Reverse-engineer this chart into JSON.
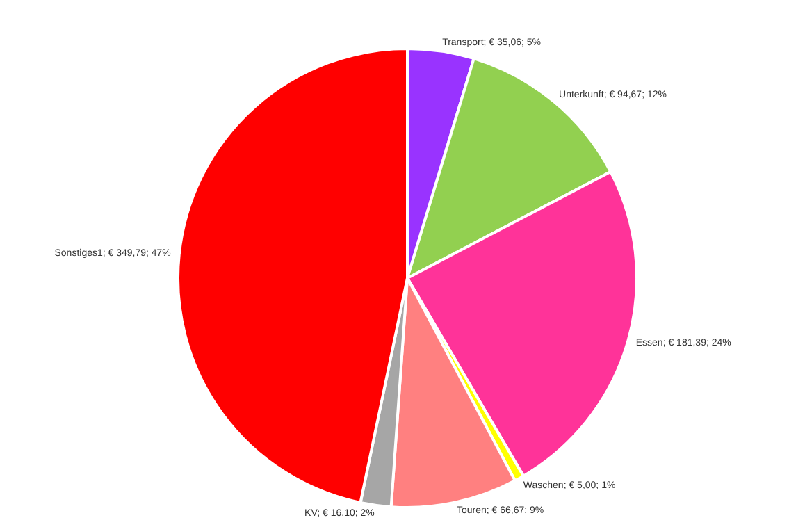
{
  "chart_data": {
    "type": "pie",
    "categories": [
      "Transport",
      "Unterkunft",
      "Essen",
      "Waschen",
      "Touren",
      "KV",
      "Sonstiges1"
    ],
    "values": [
      35.06,
      94.67,
      181.39,
      5.0,
      66.67,
      16.1,
      349.79
    ],
    "value_labels": [
      "€ 35,06; 5%",
      "€ 94,67; 12%",
      "€ 181,39; 24%",
      "€ 5,00; 1%",
      "€ 66,67; 9%",
      "€ 16,10; 2%",
      "€ 349,79; 47%"
    ],
    "colors": [
      "#9933ff",
      "#92d050",
      "#ff3399",
      "#ffff00",
      "#ff8080",
      "#a6a6a6",
      "#ff0000"
    ],
    "legend": false
  }
}
